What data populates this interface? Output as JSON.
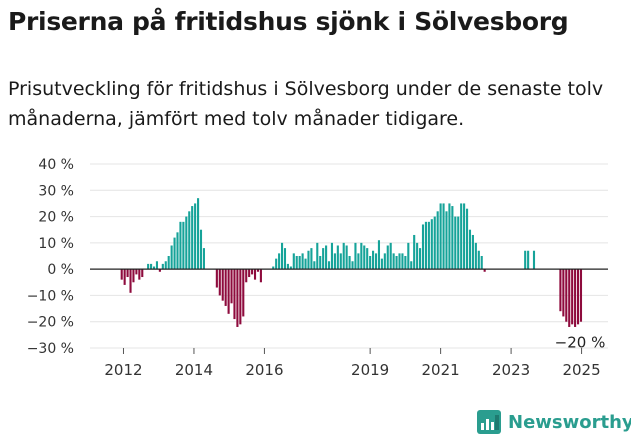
{
  "title": "Priserna på fritidshus sjönk i Sölvesborg",
  "subtitle": "Prisutveckling för fritidshus i Sölvesborg under de senaste tolv månaderna, jämfört med tolv månader tidigare.",
  "brand": {
    "name": "Newsworthy",
    "icon": "newsworthy-chart-icon",
    "color": "#2a9d8f"
  },
  "chart_data": {
    "type": "bar",
    "y_ticks": [
      "40 %",
      "30 %",
      "20 %",
      "10 %",
      "0 %",
      "−10 %",
      "−20 %",
      "−30 %"
    ],
    "y_tick_values": [
      40,
      30,
      20,
      10,
      0,
      -10,
      -20,
      -30
    ],
    "ylim": [
      -30,
      40
    ],
    "x_ticks": [
      "2012",
      "2014",
      "2016",
      "2019",
      "2021",
      "2023",
      "2025"
    ],
    "x_tick_values": [
      2012,
      2014,
      2016,
      2019,
      2021,
      2023,
      2025
    ],
    "xlim": [
      2011.05,
      2025.75
    ],
    "positive_color": "#16a399",
    "negative_color": "#8e0b3d",
    "last_value_label": "−20 %",
    "last_value": -20,
    "grid": true,
    "series": [
      {
        "start": 2011.95,
        "values": [
          -4,
          -6,
          -3,
          -9,
          -5,
          -2,
          -4,
          -3
        ]
      },
      {
        "start": 2012.7,
        "values": [
          2,
          2,
          1,
          3,
          -1,
          2,
          3,
          5,
          9,
          12,
          14,
          18,
          18,
          20,
          22,
          24,
          25,
          27,
          15,
          8
        ]
      },
      {
        "start": 2014.65,
        "values": [
          -7,
          -10,
          -12,
          -14,
          -17,
          -13,
          -19,
          -22,
          -21,
          -18,
          -5,
          -3,
          -2,
          -4,
          -1,
          -5
        ]
      },
      {
        "start": 2016.25,
        "values": [
          1,
          4,
          6,
          10,
          8,
          2,
          1,
          6,
          5,
          5,
          6,
          4,
          7,
          8,
          3,
          10,
          5,
          8,
          9,
          3,
          10,
          6,
          9,
          6,
          10,
          9,
          5,
          3,
          10,
          6,
          10,
          9,
          8,
          5,
          7,
          6,
          11,
          4,
          6,
          9,
          10,
          6,
          5,
          6,
          6,
          5,
          10,
          3,
          13,
          10,
          8,
          17,
          18,
          18,
          19,
          20,
          22,
          25,
          25,
          22,
          25,
          24,
          20,
          20,
          25,
          25,
          23,
          15,
          13,
          10,
          7,
          5,
          -1
        ]
      },
      {
        "start": 2023.4,
        "values": [
          7,
          7,
          0,
          7
        ]
      },
      {
        "start": 2024.4,
        "values": [
          -16,
          -18,
          -20,
          -22,
          -21,
          -22,
          -21,
          -20
        ]
      }
    ]
  }
}
